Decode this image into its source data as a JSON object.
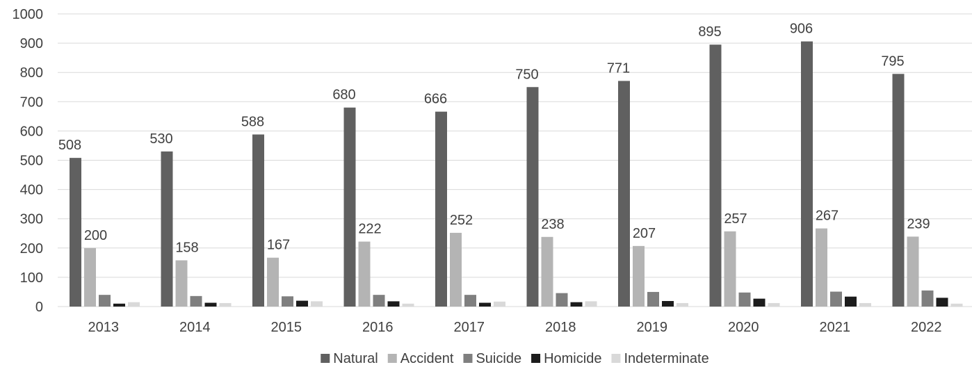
{
  "chart_data": {
    "type": "bar",
    "title": "",
    "xlabel": "",
    "ylabel": "",
    "ylim": [
      0,
      1000
    ],
    "yticks": [
      0,
      100,
      200,
      300,
      400,
      500,
      600,
      700,
      800,
      900,
      1000
    ],
    "grid": true,
    "legend_position": "bottom",
    "categories": [
      "2013",
      "2014",
      "2015",
      "2016",
      "2017",
      "2018",
      "2019",
      "2020",
      "2021",
      "2022"
    ],
    "series": [
      {
        "name": "Natural",
        "color": "#606060",
        "values": [
          508,
          530,
          588,
          680,
          666,
          750,
          771,
          895,
          906,
          795
        ],
        "labels": true
      },
      {
        "name": "Accident",
        "color": "#b4b4b4",
        "values": [
          200,
          158,
          167,
          222,
          252,
          238,
          207,
          257,
          267,
          239
        ],
        "labels": true
      },
      {
        "name": "Suicide",
        "color": "#7f7f7f",
        "values": [
          40,
          36,
          35,
          40,
          40,
          46,
          50,
          48,
          51,
          55
        ],
        "labels": false
      },
      {
        "name": "Homicide",
        "color": "#1c1c1c",
        "values": [
          10,
          13,
          20,
          18,
          13,
          15,
          19,
          27,
          34,
          30
        ],
        "labels": false
      },
      {
        "name": "Indeterminate",
        "color": "#d9d9d9",
        "values": [
          15,
          12,
          18,
          10,
          17,
          18,
          12,
          12,
          12,
          10
        ],
        "labels": false
      }
    ]
  }
}
